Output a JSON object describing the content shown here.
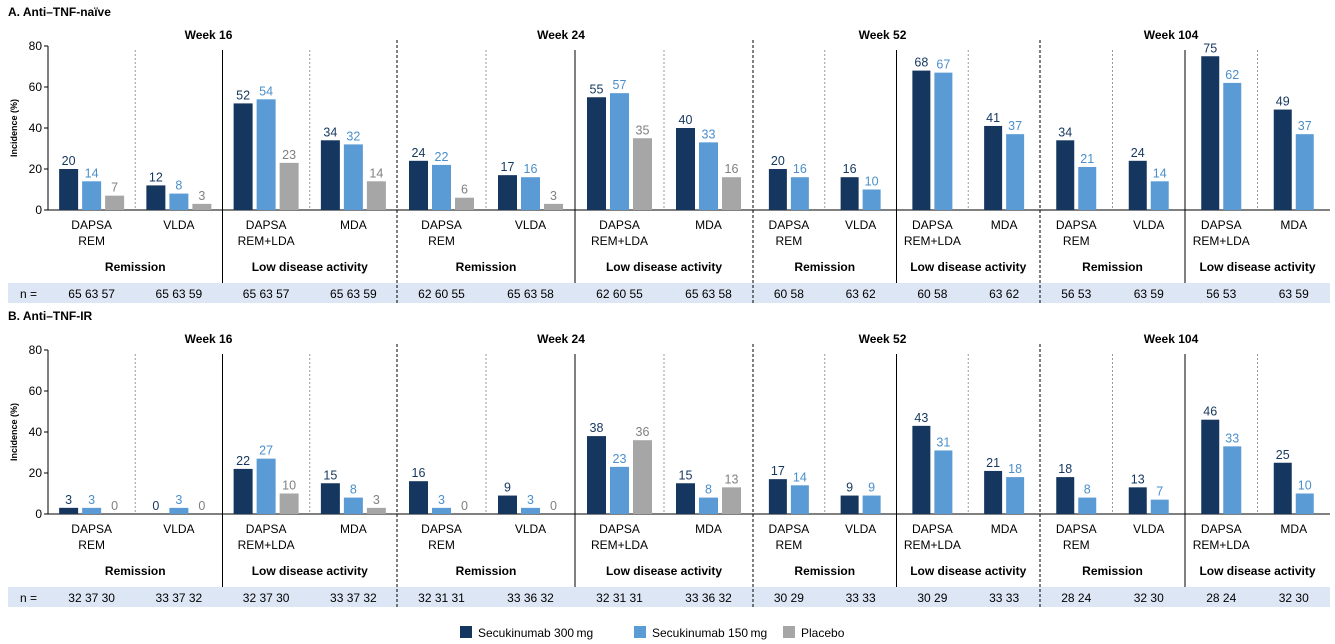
{
  "legend": [
    {
      "name": "Secukinumab 300 mg",
      "color": "#15375f"
    },
    {
      "name": "Secukinumab 150 mg",
      "color": "#5b9bd5"
    },
    {
      "name": "Placebo",
      "color": "#a6a6a6"
    }
  ],
  "label_colors": [
    "#15375f",
    "#4a8fcc",
    "#808080"
  ],
  "chart_data": [
    {
      "type": "bar",
      "title": "A. Anti–TNF-naïve",
      "ylabel": "Incidence (%)",
      "ylim": [
        0,
        80
      ],
      "yticks": [
        "0",
        "20",
        "40",
        "60",
        "80"
      ],
      "n_label": "n =",
      "groups": [
        "Remission",
        "Low disease activity"
      ],
      "categories": [
        "DAPSA REM",
        "VLDA",
        "DAPSA REM+LDA",
        "MDA"
      ],
      "weeks": [
        {
          "title": "Week 16",
          "values": [
            [
              20,
              14,
              7
            ],
            [
              12,
              8,
              3
            ],
            [
              52,
              54,
              23
            ],
            [
              34,
              32,
              14
            ]
          ],
          "labels": [
            [
              "20",
              "14",
              "7"
            ],
            [
              "12",
              "8",
              "3"
            ],
            [
              "52",
              "54",
              "23"
            ],
            [
              "34",
              "32",
              "14"
            ]
          ],
          "n": [
            "65 63 57",
            "65 63 59",
            "65 63 57",
            "65 63 59"
          ]
        },
        {
          "title": "Week 24",
          "values": [
            [
              24,
              22,
              6
            ],
            [
              17,
              16,
              3
            ],
            [
              55,
              57,
              35
            ],
            [
              40,
              33,
              16
            ]
          ],
          "labels": [
            [
              "24",
              "22",
              "6"
            ],
            [
              "17",
              "16",
              "3"
            ],
            [
              "55",
              "57",
              "35"
            ],
            [
              "40",
              "33",
              "16"
            ]
          ],
          "n": [
            "62 60 55",
            "65 63 58",
            "62 60 55",
            "65 63 58"
          ]
        },
        {
          "title": "Week 52",
          "values": [
            [
              20,
              16
            ],
            [
              16,
              10
            ],
            [
              68,
              67
            ],
            [
              41,
              37
            ]
          ],
          "labels": [
            [
              "20",
              "16"
            ],
            [
              "16",
              "10"
            ],
            [
              "68",
              "67"
            ],
            [
              "41",
              "37"
            ]
          ],
          "n": [
            "60 58",
            "63 62",
            "60 58",
            "63 62"
          ]
        },
        {
          "title": "Week 104",
          "values": [
            [
              34,
              21
            ],
            [
              24,
              14
            ],
            [
              75,
              62
            ],
            [
              49,
              37
            ]
          ],
          "labels": [
            [
              "34",
              "21"
            ],
            [
              "24",
              "14"
            ],
            [
              "75",
              "62"
            ],
            [
              "49",
              "37"
            ]
          ],
          "n": [
            "56 53",
            "63 59",
            "56 53",
            "63 59"
          ]
        }
      ]
    },
    {
      "type": "bar",
      "title": "B. Anti–TNF-IR",
      "ylabel": "Incidence (%)",
      "ylim": [
        0,
        80
      ],
      "yticks": [
        "0",
        "20",
        "40",
        "60",
        "80"
      ],
      "n_label": "n =",
      "groups": [
        "Remission",
        "Low disease activity"
      ],
      "categories": [
        "DAPSA REM",
        "VLDA",
        "DAPSA REM+LDA",
        "MDA"
      ],
      "weeks": [
        {
          "title": "Week 16",
          "values": [
            [
              3,
              3,
              0
            ],
            [
              0,
              3,
              0
            ],
            [
              22,
              27,
              10
            ],
            [
              15,
              8,
              3
            ]
          ],
          "labels": [
            [
              "3",
              "3",
              "0"
            ],
            [
              "0",
              "3",
              "0"
            ],
            [
              "22",
              "27",
              "10"
            ],
            [
              "15",
              "8",
              "3"
            ]
          ],
          "n": [
            "32 37 30",
            "33 37 32",
            "32 37 30",
            "33 37 32"
          ]
        },
        {
          "title": "Week 24",
          "values": [
            [
              16,
              3,
              0
            ],
            [
              9,
              3,
              0
            ],
            [
              38,
              23,
              36
            ],
            [
              15,
              8,
              13
            ]
          ],
          "labels": [
            [
              "16",
              "3",
              "0"
            ],
            [
              "9",
              "3",
              "0"
            ],
            [
              "38",
              "23",
              "36"
            ],
            [
              "15",
              "8",
              "13"
            ]
          ],
          "n": [
            "32 31 31",
            "33 36 32",
            "32 31 31",
            "33 36 32"
          ]
        },
        {
          "title": "Week 52",
          "values": [
            [
              17,
              14
            ],
            [
              9,
              9
            ],
            [
              43,
              31
            ],
            [
              21,
              18
            ]
          ],
          "labels": [
            [
              "17",
              "14"
            ],
            [
              "9",
              "9"
            ],
            [
              "43",
              "31"
            ],
            [
              "21",
              "18"
            ]
          ],
          "n": [
            "30 29",
            "33 33",
            "30 29",
            "33 33"
          ]
        },
        {
          "title": "Week 104",
          "values": [
            [
              18,
              8
            ],
            [
              13,
              7
            ],
            [
              46,
              33
            ],
            [
              25,
              10
            ]
          ],
          "labels": [
            [
              "18",
              "8"
            ],
            [
              "13",
              "7"
            ],
            [
              "46",
              "33"
            ],
            [
              "25",
              "10"
            ]
          ],
          "n": [
            "28 24",
            "32 30",
            "28 24",
            "32 30"
          ]
        }
      ]
    }
  ]
}
